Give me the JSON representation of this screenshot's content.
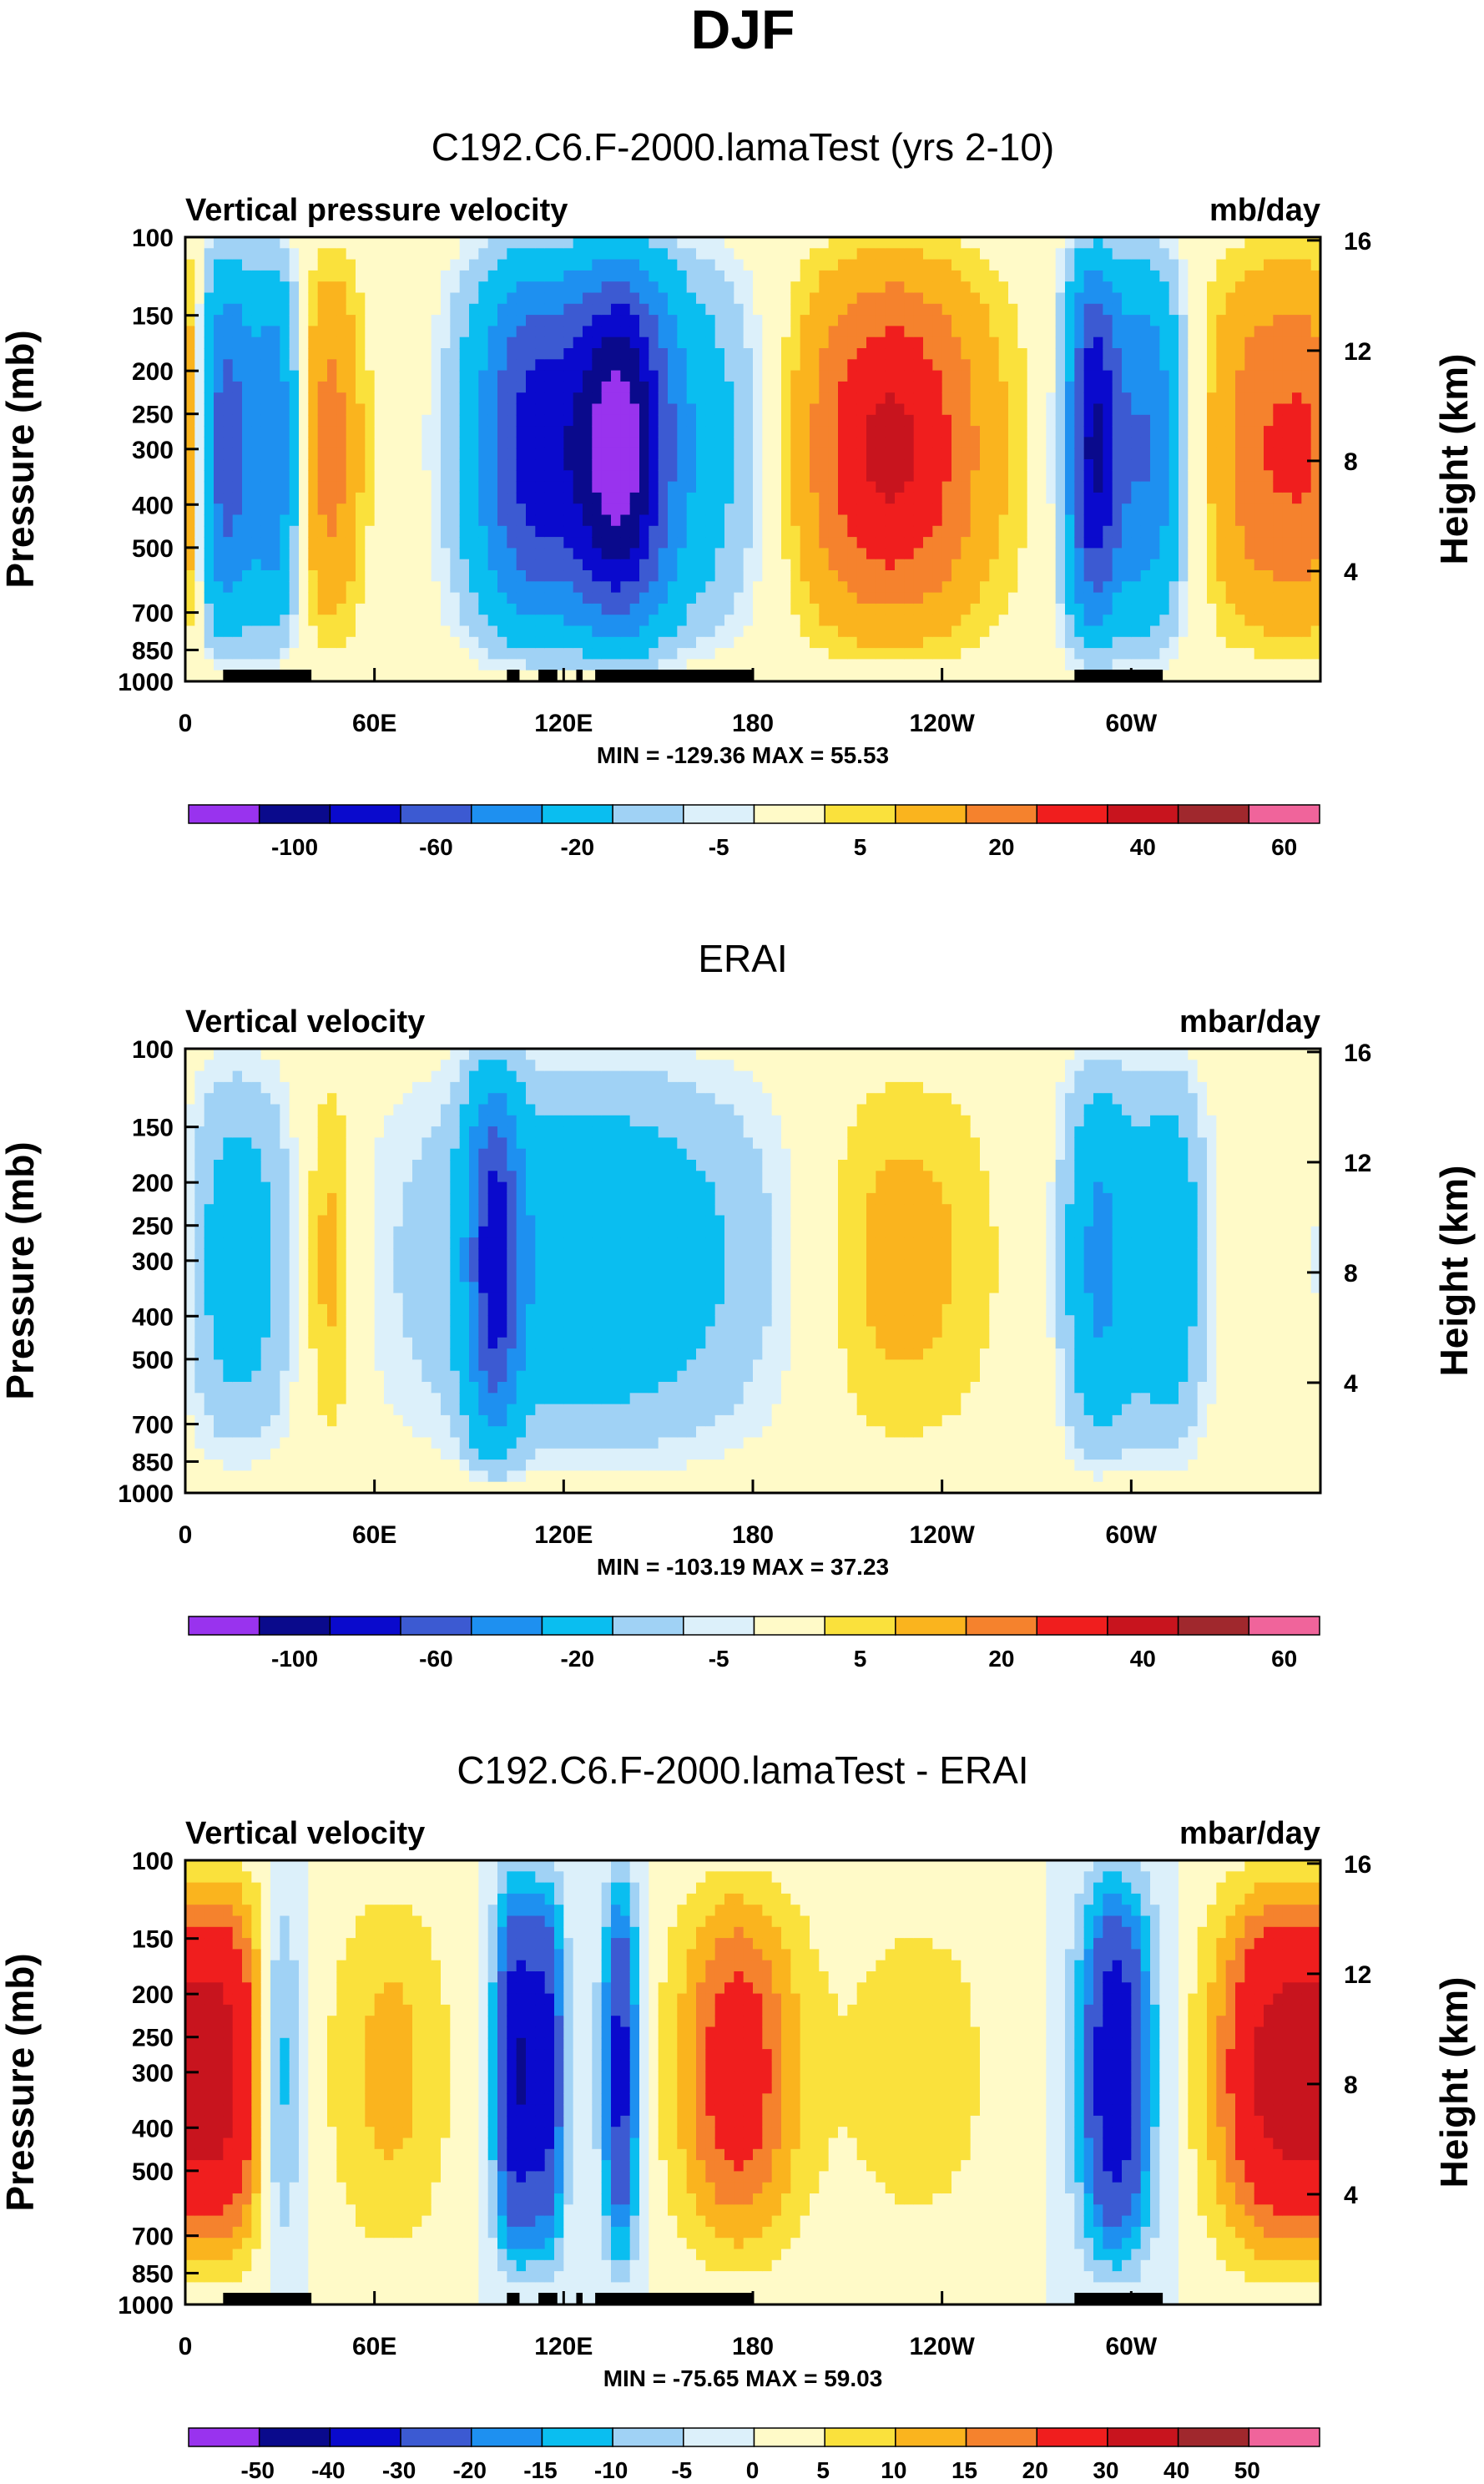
{
  "figure": {
    "title": "DJF"
  },
  "chart_data": [
    {
      "type": "heatmap",
      "title": "C192.C6.F-2000.lamaTest (yrs 2-10)",
      "variable": "Vertical pressure velocity",
      "units": "mb/day",
      "ylabel": "Pressure (mb)",
      "y2label": "Height (km)",
      "ylim": [
        1000,
        100
      ],
      "y_ticks": [
        100,
        150,
        200,
        250,
        300,
        400,
        500,
        700,
        850,
        1000
      ],
      "y2_ticks": [
        16,
        12,
        8,
        4
      ],
      "x_ticks": [
        "0",
        "60E",
        "120E",
        "180",
        "120W",
        "60W"
      ],
      "x_tick_lon": [
        0,
        60,
        120,
        180,
        240,
        300
      ],
      "min": -129.36,
      "max": 55.53,
      "min_max_text": "MIN = -129.36  MAX =  55.53",
      "colorbar_labels": [
        "-100",
        "-60",
        "-20",
        "-5",
        "5",
        "20",
        "40",
        "60"
      ],
      "colorbar_colors": [
        "#9933ee",
        "#0a0a8c",
        "#0a0acd",
        "#3c5ad2",
        "#1e90f0",
        "#0abef0",
        "#a0d2f5",
        "#dcf0fa",
        "#fffac8",
        "#fae13c",
        "#fab41e",
        "#f5822d",
        "#f01e1e",
        "#c8141e",
        "#a0282d",
        "#f0649b"
      ],
      "features": [
        {
          "lon": 12,
          "w": 6,
          "v": -90
        },
        {
          "lon": 28,
          "w": 6,
          "v": -60
        },
        {
          "lon": 45,
          "w": 8,
          "v": 25
        },
        {
          "lon": 110,
          "w": 14,
          "v": -80
        },
        {
          "lon": 138,
          "w": 10,
          "v": -90
        },
        {
          "lon": 150,
          "w": 25,
          "v": -40
        },
        {
          "lon": 210,
          "w": 22,
          "v": 20
        },
        {
          "lon": 230,
          "w": 20,
          "v": 28
        },
        {
          "lon": 288,
          "w": 6,
          "v": -100
        },
        {
          "lon": 305,
          "w": 8,
          "v": -60
        },
        {
          "lon": 345,
          "w": 15,
          "v": 30
        },
        {
          "lon": 5,
          "w": 8,
          "v": 20
        }
      ],
      "land_segments": [
        [
          12,
          40
        ],
        [
          102,
          106
        ],
        [
          112,
          118
        ],
        [
          124,
          126
        ],
        [
          130,
          180
        ],
        [
          282,
          310
        ]
      ]
    },
    {
      "type": "heatmap",
      "title": "ERAI",
      "variable": "Vertical velocity",
      "units": "mbar/day",
      "ylabel": "Pressure (mb)",
      "y2label": "Height (km)",
      "ylim": [
        1000,
        100
      ],
      "y_ticks": [
        100,
        150,
        200,
        250,
        300,
        400,
        500,
        700,
        850,
        1000
      ],
      "y2_ticks": [
        16,
        12,
        8,
        4
      ],
      "x_ticks": [
        "0",
        "60E",
        "120E",
        "180",
        "120W",
        "60W"
      ],
      "x_tick_lon": [
        0,
        60,
        120,
        180,
        240,
        300
      ],
      "min": -103.19,
      "max": 37.23,
      "min_max_text": "MIN = -103.19  MAX =  37.23",
      "colorbar_labels": [
        "-100",
        "-60",
        "-20",
        "-5",
        "5",
        "20",
        "40",
        "60"
      ],
      "colorbar_colors": [
        "#9933ee",
        "#0a0a8c",
        "#0a0acd",
        "#3c5ad2",
        "#1e90f0",
        "#0abef0",
        "#a0d2f5",
        "#dcf0fa",
        "#fffac8",
        "#fae13c",
        "#fab41e",
        "#f5822d",
        "#f01e1e",
        "#c8141e",
        "#a0282d",
        "#f0649b"
      ],
      "features": [
        {
          "lon": 15,
          "w": 14,
          "v": -30
        },
        {
          "lon": 45,
          "w": 7,
          "v": 18
        },
        {
          "lon": 98,
          "w": 6,
          "v": -70
        },
        {
          "lon": 130,
          "w": 40,
          "v": -35
        },
        {
          "lon": 225,
          "w": 22,
          "v": 15
        },
        {
          "lon": 290,
          "w": 8,
          "v": -45
        },
        {
          "lon": 312,
          "w": 8,
          "v": -35
        },
        {
          "lon": 358,
          "w": 8,
          "v": 10
        }
      ],
      "land_segments": []
    },
    {
      "type": "heatmap",
      "title": "C192.C6.F-2000.lamaTest - ERAI",
      "variable": "Vertical velocity",
      "units": "mbar/day",
      "ylabel": "Pressure (mb)",
      "y2label": "Height (km)",
      "ylim": [
        1000,
        100
      ],
      "y_ticks": [
        100,
        150,
        200,
        250,
        300,
        400,
        500,
        700,
        850,
        1000
      ],
      "y2_ticks": [
        16,
        12,
        8,
        4
      ],
      "x_ticks": [
        "0",
        "60E",
        "120E",
        "180",
        "120W",
        "60W"
      ],
      "x_tick_lon": [
        0,
        60,
        120,
        180,
        240,
        300
      ],
      "min": -75.65,
      "max": 59.03,
      "min_max_text": "MIN = -75.65  MAX = 59.03",
      "colorbar_labels": [
        "-50",
        "-40",
        "-30",
        "-20",
        "-15",
        "-10",
        "-5",
        "0",
        "5",
        "10",
        "15",
        "20",
        "30",
        "40",
        "50"
      ],
      "colorbar_colors": [
        "#9933ee",
        "#0a0a8c",
        "#0a0acd",
        "#3c5ad2",
        "#1e90f0",
        "#0abef0",
        "#a0d2f5",
        "#dcf0fa",
        "#fffac8",
        "#fae13c",
        "#fab41e",
        "#f5822d",
        "#f01e1e",
        "#c8141e",
        "#a0282d",
        "#f0649b"
      ],
      "features": [
        {
          "lon": 12,
          "w": 12,
          "v": 30
        },
        {
          "lon": 30,
          "w": 5,
          "v": -20
        },
        {
          "lon": 65,
          "w": 14,
          "v": 12
        },
        {
          "lon": 105,
          "w": 5,
          "v": -40
        },
        {
          "lon": 115,
          "w": 4,
          "v": -30
        },
        {
          "lon": 138,
          "w": 4,
          "v": -35
        },
        {
          "lon": 175,
          "w": 14,
          "v": 25
        },
        {
          "lon": 232,
          "w": 20,
          "v": 8
        },
        {
          "lon": 295,
          "w": 8,
          "v": -40
        },
        {
          "lon": 345,
          "w": 14,
          "v": 32
        }
      ],
      "land_segments": [
        [
          12,
          40
        ],
        [
          102,
          106
        ],
        [
          112,
          118
        ],
        [
          124,
          126
        ],
        [
          130,
          180
        ],
        [
          282,
          310
        ]
      ]
    }
  ]
}
